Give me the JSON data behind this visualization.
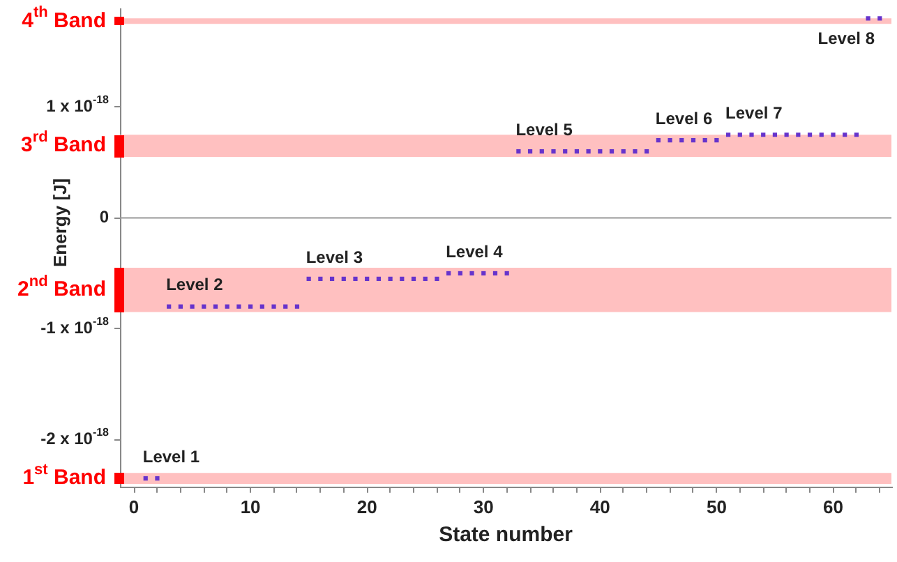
{
  "chart_data": {
    "type": "scatter",
    "xlabel": "State number",
    "ylabel": "Energy [J]",
    "xlim": [
      -1.2,
      65
    ],
    "ylim": [
      -2.43e-18,
      1.89e-18
    ],
    "xticks": [
      0,
      {
        "value": 2,
        "label": null
      },
      {
        "value": 4,
        "label": null
      },
      {
        "value": 6,
        "label": null
      },
      {
        "value": 8,
        "label": null
      },
      10,
      {
        "value": 12,
        "label": null
      },
      {
        "value": 14,
        "label": null
      },
      {
        "value": 16,
        "label": null
      },
      {
        "value": 18,
        "label": null
      },
      20,
      {
        "value": 22,
        "label": null
      },
      {
        "value": 24,
        "label": null
      },
      {
        "value": 26,
        "label": null
      },
      {
        "value": 28,
        "label": null
      },
      30,
      {
        "value": 32,
        "label": null
      },
      {
        "value": 34,
        "label": null
      },
      {
        "value": 36,
        "label": null
      },
      {
        "value": 38,
        "label": null
      },
      40,
      {
        "value": 42,
        "label": null
      },
      {
        "value": 44,
        "label": null
      },
      {
        "value": 46,
        "label": null
      },
      {
        "value": 48,
        "label": null
      },
      50,
      {
        "value": 52,
        "label": null
      },
      {
        "value": 54,
        "label": null
      },
      {
        "value": 56,
        "label": null
      },
      {
        "value": 58,
        "label": null
      },
      60,
      {
        "value": 62,
        "label": null
      },
      {
        "value": 64,
        "label": null
      }
    ],
    "yticks": [
      {
        "value": -2e-18,
        "label": "-2 x 10$^{-18}$"
      },
      {
        "value": -1e-18,
        "label": "-1 x 10$^{-18}$"
      },
      0,
      {
        "value": 1e-18,
        "label": "1 x 10$^{-18}$"
      }
    ],
    "grid": false,
    "legend": false,
    "marker": "square",
    "series": [
      {
        "color": "#6633cc",
        "x": [
          1,
          2,
          3,
          4,
          5,
          6,
          7,
          8,
          9,
          10,
          11,
          12,
          13,
          14,
          15,
          16,
          17,
          18,
          19,
          20,
          21,
          22,
          23,
          24,
          25,
          26,
          27,
          28,
          29,
          30,
          31,
          32,
          33,
          34,
          35,
          36,
          37,
          38,
          39,
          40,
          41,
          42,
          43,
          44,
          45,
          46,
          47,
          48,
          49,
          50,
          51,
          52,
          53,
          54,
          55,
          56,
          57,
          58,
          59,
          60,
          61,
          62,
          63,
          64
        ],
        "values": [
          -2.35e-18,
          -2.35e-18,
          -8e-19,
          -8e-19,
          -8e-19,
          -8e-19,
          -8e-19,
          -8e-19,
          -8e-19,
          -8e-19,
          -8e-19,
          -8e-19,
          -8e-19,
          -8e-19,
          -5.5e-19,
          -5.5e-19,
          -5.5e-19,
          -5.5e-19,
          -5.5e-19,
          -5.5e-19,
          -5.5e-19,
          -5.5e-19,
          -5.5e-19,
          -5.5e-19,
          -5.5e-19,
          -5.5e-19,
          -5e-19,
          -5e-19,
          -5e-19,
          -5e-19,
          -5e-19,
          -5e-19,
          6e-19,
          6e-19,
          6e-19,
          6e-19,
          6e-19,
          6e-19,
          6e-19,
          6e-19,
          6e-19,
          6e-19,
          6e-19,
          6e-19,
          7e-19,
          7e-19,
          7e-19,
          7e-19,
          7e-19,
          7e-19,
          7.5e-19,
          7.5e-19,
          7.5e-19,
          7.5e-19,
          7.5e-19,
          7.5e-19,
          7.5e-19,
          7.5e-19,
          7.5e-19,
          7.5e-19,
          7.5e-19,
          7.5e-19,
          1.8e-18,
          1.8e-18
        ]
      }
    ],
    "bands": [
      {
        "axis": "y",
        "from": 1.75e-18,
        "to": 1.8e-18,
        "label": "4$^{th}$ Band",
        "color": "#ffc0c0"
      },
      {
        "axis": "y",
        "from": 5.5e-19,
        "to": 7.5e-19,
        "label": "3$^{rd}$ Band",
        "color": "#ffc0c0"
      },
      {
        "axis": "y",
        "from": -8.5e-19,
        "to": -4.5e-19,
        "label": "2$^{nd}$ Band",
        "color": "#ffc0c0"
      },
      {
        "axis": "y",
        "from": -2.4e-18,
        "to": -2.3e-18,
        "label": "1$^{st}$ Band",
        "color": "#ffc0c0"
      }
    ],
    "ref_lines": [
      {
        "axis": "y",
        "value": 0,
        "color": "#999999"
      }
    ],
    "annotations": [
      {
        "text": "Level 1",
        "x": 1,
        "y": -2.35e-18
      },
      {
        "text": "Level 2",
        "x": 3,
        "y": -8e-19
      },
      {
        "text": "Level 3",
        "x": 15,
        "y": -5.5e-19
      },
      {
        "text": "Level 4",
        "x": 27,
        "y": -5e-19
      },
      {
        "text": "Level 5",
        "x": 33,
        "y": 6e-19
      },
      {
        "text": "Level 6",
        "x": 45,
        "y": 7e-19
      },
      {
        "text": "Level 7",
        "x": 51,
        "y": 7.5e-19
      },
      {
        "text": "Level 8",
        "x": 63,
        "y": 1.8e-18
      }
    ]
  }
}
